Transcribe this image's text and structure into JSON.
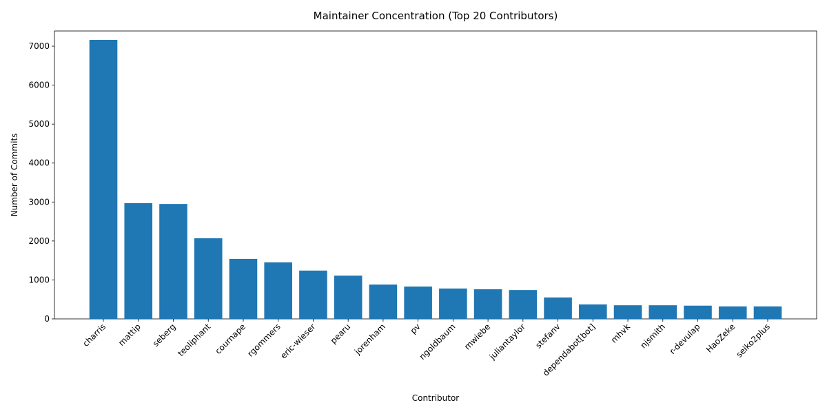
{
  "chart_data": {
    "type": "bar",
    "title": "Maintainer Concentration (Top 20 Contributors)",
    "x_label": "Contributor",
    "y_label": "Number of Commits",
    "categories": [
      "charris",
      "mattip",
      "seberg",
      "teoliphant",
      "cournape",
      "rgommers",
      "eric-wieser",
      "pearu",
      "jorenham",
      "pv",
      "ngoldbaum",
      "mwiebe",
      "juliantaylor",
      "stefanv",
      "dependabot[bot]",
      "mhvk",
      "njsmith",
      "r-devulap",
      "HaoZeke",
      "seiko2plus"
    ],
    "values": [
      7160,
      2970,
      2950,
      2070,
      1540,
      1450,
      1240,
      1110,
      880,
      830,
      780,
      760,
      740,
      550,
      370,
      350,
      350,
      340,
      320,
      320
    ],
    "color": "#1f77b4",
    "ylim": [
      0,
      7390
    ],
    "yticks": [
      0,
      1000,
      2000,
      3000,
      4000,
      5000,
      6000,
      7000
    ],
    "grid": false
  }
}
